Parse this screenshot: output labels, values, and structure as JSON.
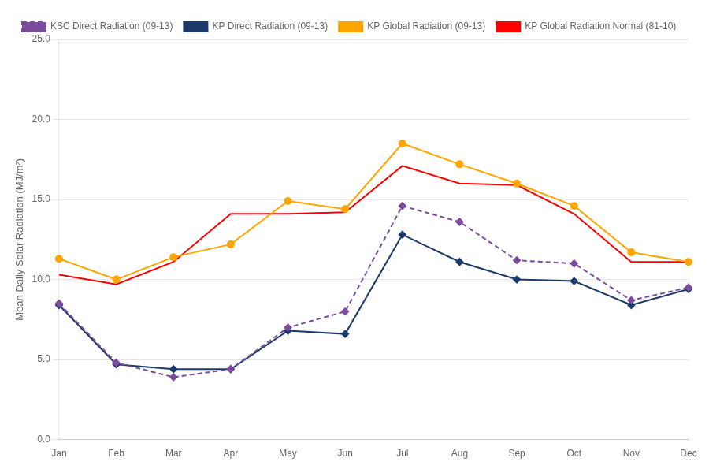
{
  "chart_data": {
    "type": "line",
    "categories": [
      "Jan",
      "Feb",
      "Mar",
      "Apr",
      "May",
      "Jun",
      "Jul",
      "Aug",
      "Sep",
      "Oct",
      "Nov",
      "Dec"
    ],
    "series": [
      {
        "name": "KSC Direct Radiation (09-13)",
        "color": "#7B4B9E",
        "marker": "diamond",
        "line_style": "dashed",
        "values": [
          8.5,
          4.8,
          3.9,
          4.4,
          7.0,
          8.0,
          14.6,
          13.6,
          11.2,
          11.0,
          8.7,
          9.5
        ]
      },
      {
        "name": "KP Direct Radiation (09-13)",
        "color": "#1B3A6B",
        "marker": "diamond",
        "line_style": "solid",
        "values": [
          8.4,
          4.7,
          4.4,
          4.4,
          6.8,
          6.6,
          12.8,
          11.1,
          10.0,
          9.9,
          8.4,
          9.4
        ]
      },
      {
        "name": "KP Global Radiation (09-13)",
        "color": "#FFA500",
        "marker": "circle",
        "line_style": "solid",
        "values": [
          11.3,
          10.0,
          11.4,
          12.2,
          14.9,
          14.4,
          18.5,
          17.2,
          16.0,
          14.6,
          11.7,
          11.1
        ]
      },
      {
        "name": "KP Global Radiation Normal (81-10)",
        "color": "#FF0000",
        "marker": "none",
        "line_style": "solid",
        "values": [
          10.3,
          9.7,
          11.1,
          14.1,
          14.1,
          14.2,
          17.1,
          16.0,
          15.9,
          14.1,
          11.1,
          11.1
        ]
      }
    ],
    "y_label": "Mean Daily Solar Radiation (MJ/m²)",
    "ylim": [
      0,
      25
    ],
    "yticks": [
      {
        "value": 0,
        "label": "0.0"
      },
      {
        "value": 5,
        "label": "5.0"
      },
      {
        "value": 10,
        "label": "10.0"
      },
      {
        "value": 15,
        "label": "15.0"
      },
      {
        "value": 20,
        "label": "20.0"
      },
      {
        "value": 25,
        "label": "25.0"
      }
    ],
    "grid": "y",
    "legend": "upper left"
  }
}
